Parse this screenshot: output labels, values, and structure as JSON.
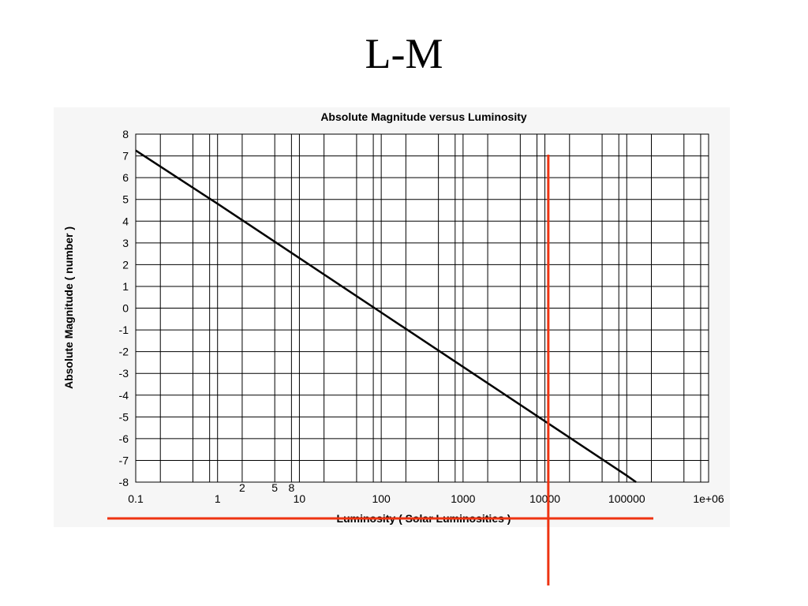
{
  "slide": {
    "title": "L-M"
  },
  "chart_data": {
    "type": "line",
    "title": "Absolute Magnitude versus Luminosity",
    "xlabel": "Luminosity ( Solar Luminosities )",
    "ylabel": "Absolute Magnitude ( number )",
    "x_scale": "log",
    "xlim": [
      0.1,
      1000000
    ],
    "ylim": [
      -8,
      8
    ],
    "x_tick_labels": [
      "0.1",
      "1",
      "10",
      "100",
      "1000",
      "10000",
      "100000",
      "1e+06"
    ],
    "x_tick_values": [
      0.1,
      1,
      10,
      100,
      1000,
      10000,
      100000,
      1000000
    ],
    "y_tick_values": [
      8,
      7,
      6,
      5,
      4,
      3,
      2,
      1,
      0,
      -1,
      -2,
      -3,
      -4,
      -5,
      -6,
      -7,
      -8
    ],
    "y_tick_labels": [
      "8",
      "7",
      "6",
      "5",
      "4",
      "3",
      "2",
      "1",
      "0",
      "-1",
      "-2",
      "-3",
      "-4",
      "-5",
      "-6",
      "-7",
      "-8"
    ],
    "grid": true,
    "series": [
      {
        "color": "#000000",
        "x": [
          0.1,
          1,
          10,
          100,
          1000,
          10000,
          100000,
          130000
        ],
        "y": [
          7.25,
          4.8,
          2.3,
          -0.2,
          -2.7,
          -5.2,
          -7.7,
          -8
        ]
      }
    ],
    "annotations": [
      {
        "text": "2",
        "x": 2
      },
      {
        "text": "5",
        "x": 5
      },
      {
        "text": "8",
        "x": 8
      }
    ],
    "overlay_color": "#ee3311",
    "overlay_vertical_x": 11000
  }
}
